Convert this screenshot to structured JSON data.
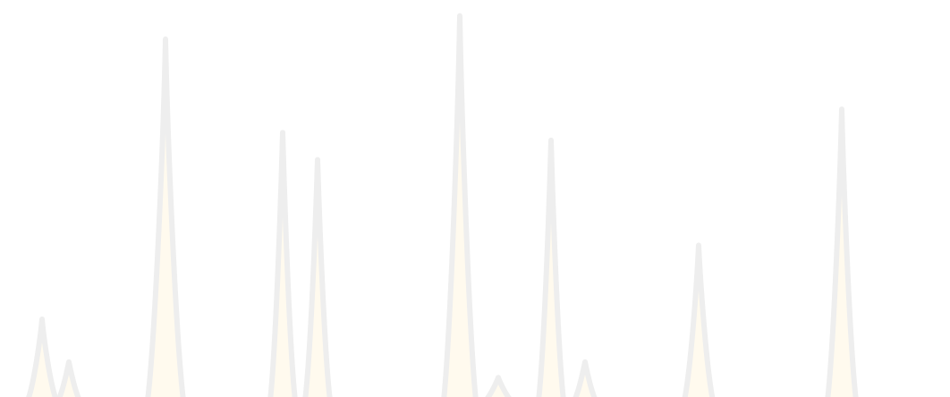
{
  "background_color": "#ffffff",
  "spike_outline_color": "#eeeeee",
  "spike_fill_color": "#fffaee",
  "spikes": [
    {
      "name": "spike-1",
      "height_fraction": 0.2
    },
    {
      "name": "spike-2",
      "height_fraction": 0.09
    },
    {
      "name": "spike-3",
      "height_fraction": 0.92
    },
    {
      "name": "spike-4",
      "height_fraction": 0.68
    },
    {
      "name": "spike-5",
      "height_fraction": 0.61
    },
    {
      "name": "spike-6",
      "height_fraction": 0.98
    },
    {
      "name": "spike-7",
      "height_fraction": 0.05
    },
    {
      "name": "spike-8",
      "height_fraction": 0.66
    },
    {
      "name": "spike-9",
      "height_fraction": 0.09
    },
    {
      "name": "spike-10",
      "height_fraction": 0.39
    },
    {
      "name": "spike-11",
      "height_fraction": 0.74
    }
  ]
}
